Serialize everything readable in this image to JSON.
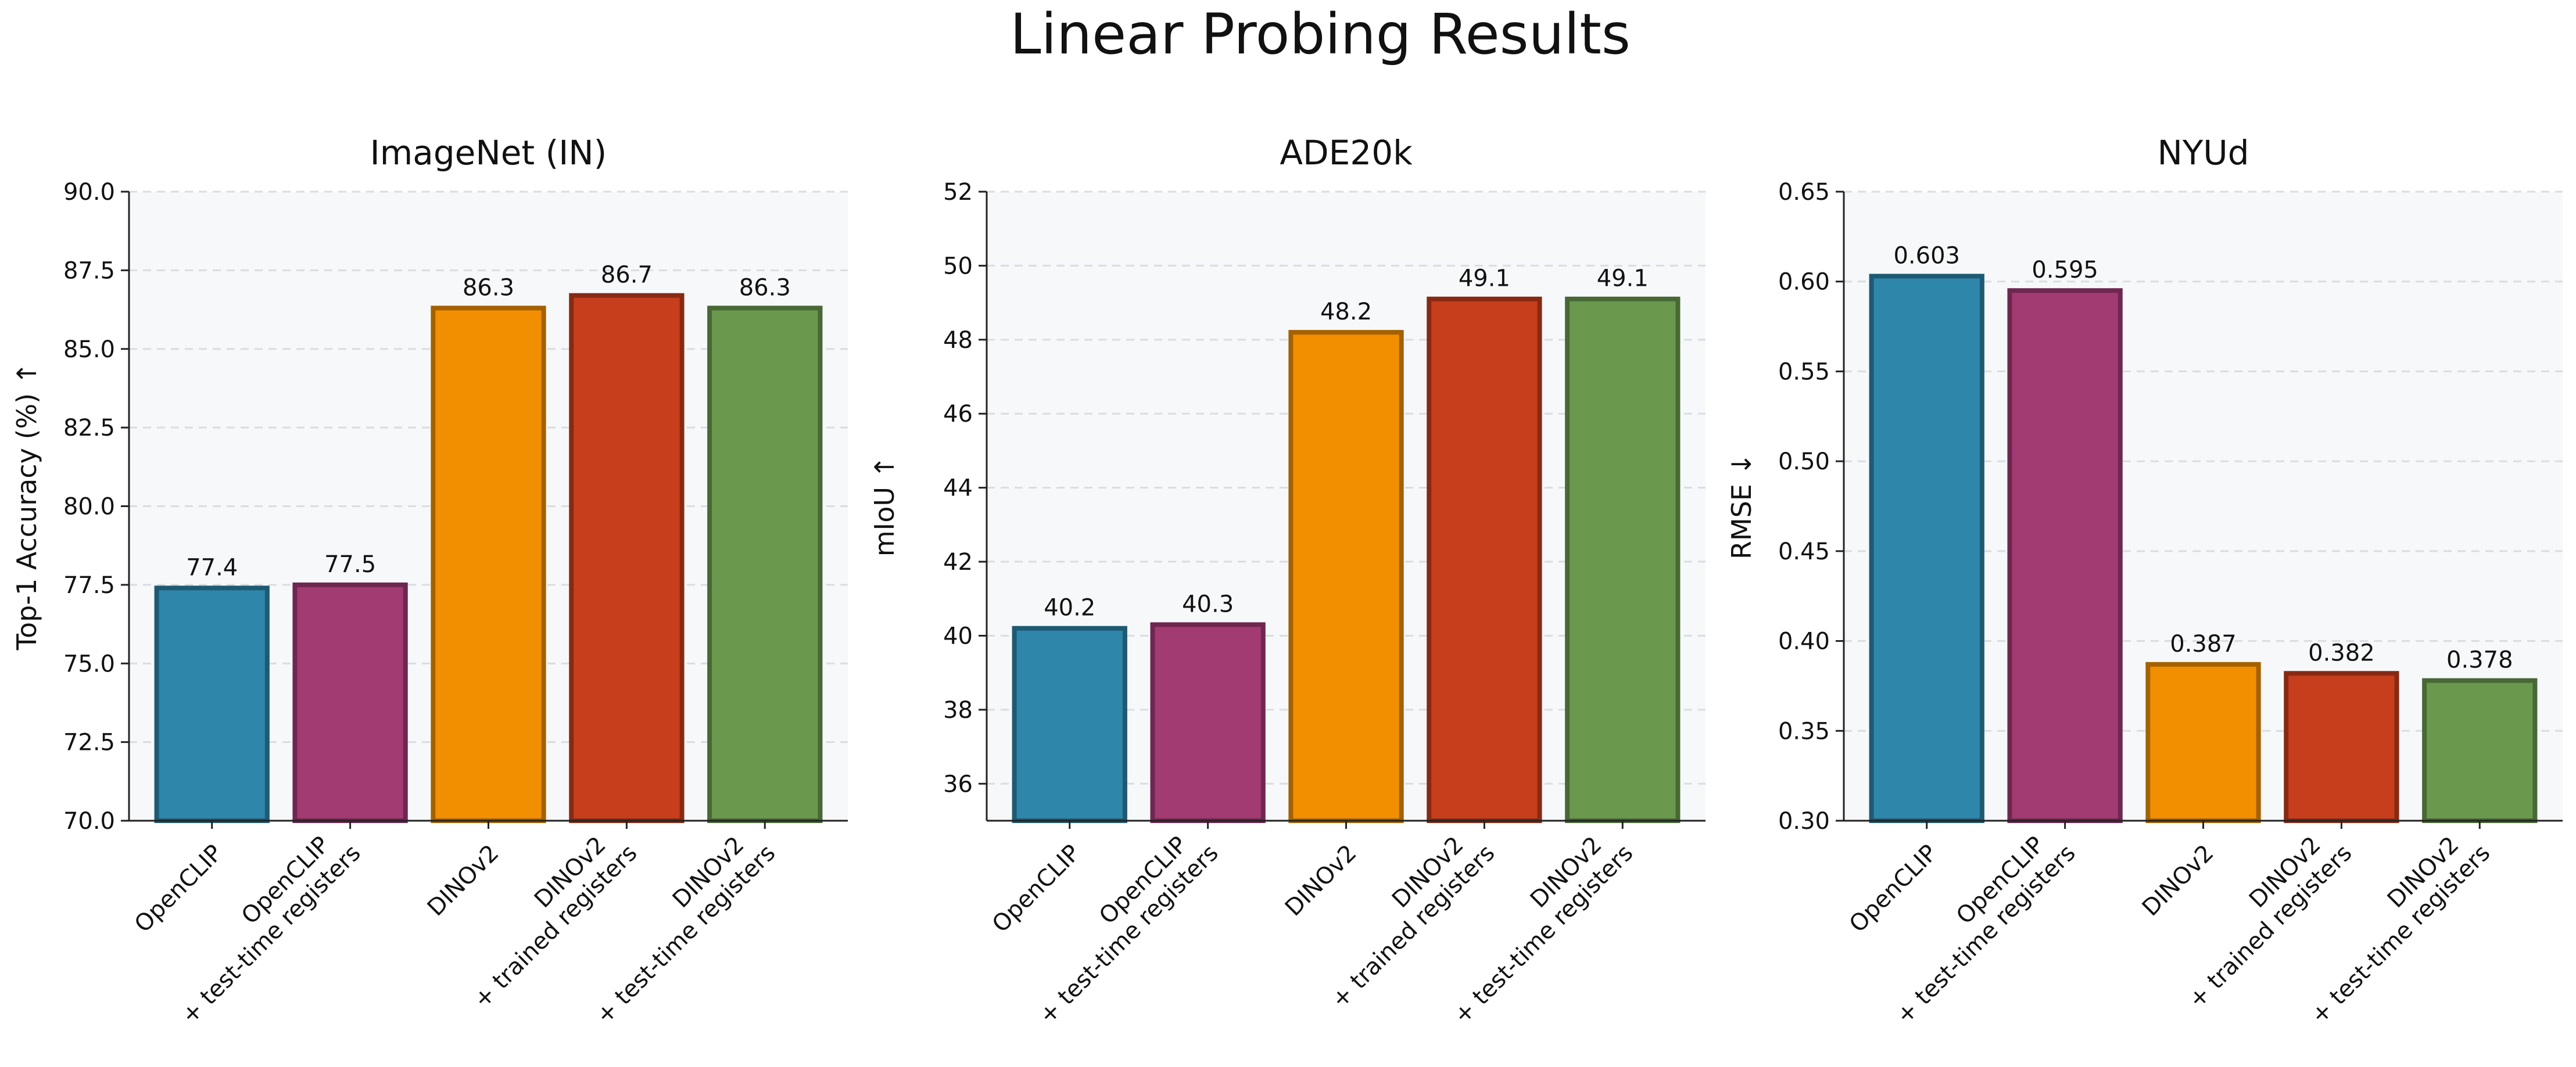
{
  "figure_title": "Linear Probing Results",
  "colors": {
    "plot_bg": "#f6f8fa",
    "grid": "#d9dde2",
    "bars": [
      "#2e86ab",
      "#a23b72",
      "#f18f01",
      "#c73e1d",
      "#6a994e"
    ],
    "edges": [
      "#1f5a73",
      "#6e2750",
      "#a46101",
      "#872a13",
      "#486835"
    ]
  },
  "chart_data": [
    {
      "type": "bar",
      "title": "ImageNet (IN)",
      "ylabel": "Top-1 Accuracy (%) ↑",
      "xlabel": "",
      "ylim": [
        70.0,
        90.0
      ],
      "yticks": [
        "70.0",
        "72.5",
        "75.0",
        "77.5",
        "80.0",
        "82.5",
        "85.0",
        "87.5",
        "90.0"
      ],
      "grid": true,
      "categories": [
        [
          "OpenCLIP"
        ],
        [
          "OpenCLIP",
          "+ test-time registers"
        ],
        [
          "DINOv2"
        ],
        [
          "DINOv2",
          "+ trained registers"
        ],
        [
          "DINOv2",
          "+ test-time registers"
        ]
      ],
      "values": [
        77.4,
        77.5,
        86.3,
        86.7,
        86.3
      ],
      "value_labels": [
        "77.4",
        "77.5",
        "86.3",
        "86.7",
        "86.3"
      ]
    },
    {
      "type": "bar",
      "title": "ADE20k",
      "ylabel": "mIoU ↑",
      "xlabel": "",
      "ylim": [
        35.0,
        52.0
      ],
      "yticks": [
        "36",
        "38",
        "40",
        "42",
        "44",
        "46",
        "48",
        "50",
        "52"
      ],
      "grid": true,
      "categories": [
        [
          "OpenCLIP"
        ],
        [
          "OpenCLIP",
          "+ test-time registers"
        ],
        [
          "DINOv2"
        ],
        [
          "DINOv2",
          "+ trained registers"
        ],
        [
          "DINOv2",
          "+ test-time registers"
        ]
      ],
      "values": [
        40.2,
        40.3,
        48.2,
        49.1,
        49.1
      ],
      "value_labels": [
        "40.2",
        "40.3",
        "48.2",
        "49.1",
        "49.1"
      ]
    },
    {
      "type": "bar",
      "title": "NYUd",
      "ylabel": "RMSE ↓",
      "xlabel": "",
      "ylim": [
        0.3,
        0.65
      ],
      "yticks": [
        "0.30",
        "0.35",
        "0.40",
        "0.45",
        "0.50",
        "0.55",
        "0.60",
        "0.65"
      ],
      "grid": true,
      "categories": [
        [
          "OpenCLIP"
        ],
        [
          "OpenCLIP",
          "+ test-time registers"
        ],
        [
          "DINOv2"
        ],
        [
          "DINOv2",
          "+ trained registers"
        ],
        [
          "DINOv2",
          "+ test-time registers"
        ]
      ],
      "values": [
        0.603,
        0.595,
        0.387,
        0.382,
        0.378
      ],
      "value_labels": [
        "0.603",
        "0.595",
        "0.387",
        "0.382",
        "0.378"
      ]
    }
  ]
}
